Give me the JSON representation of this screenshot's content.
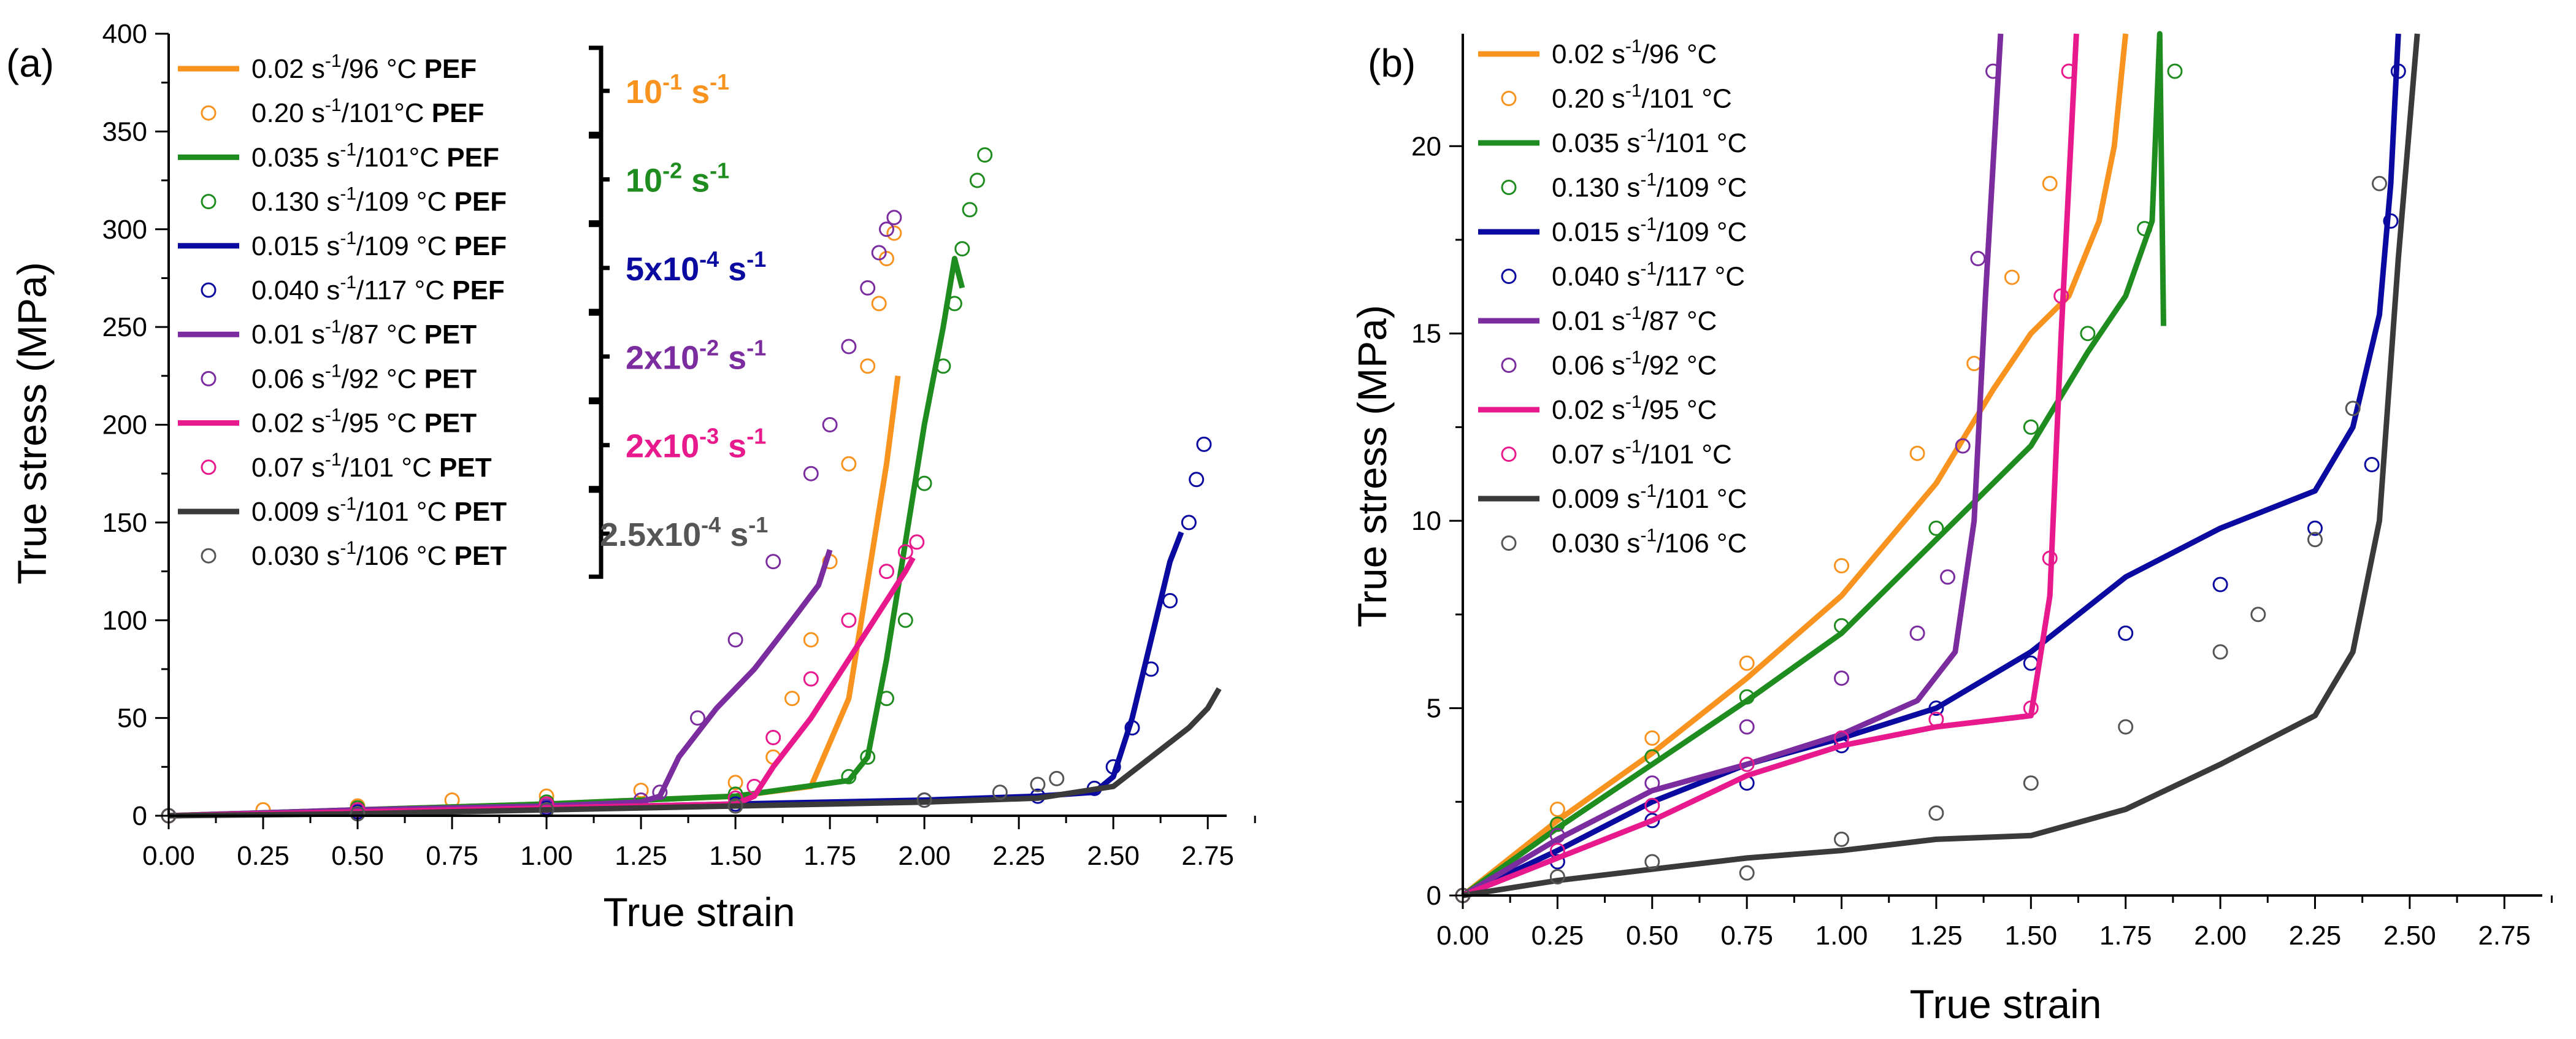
{
  "chart_data": [
    {
      "type": "line",
      "panel": "(a)",
      "xlabel": "True strain",
      "ylabel": "True stress (MPa)",
      "xlim": [
        0,
        2.8
      ],
      "ylim": [
        0,
        400
      ],
      "xticks": [
        "0.00",
        "0.25",
        "0.50",
        "0.75",
        "1.00",
        "1.25",
        "1.50",
        "1.75",
        "2.00",
        "2.25",
        "2.50",
        "2.75"
      ],
      "yticks": [
        "0",
        "50",
        "100",
        "150",
        "200",
        "250",
        "300",
        "350",
        "400"
      ],
      "legend_position": "top-left",
      "rate_groups": [
        {
          "label": "10",
          "sup": "-1",
          "unit": " s",
          "unit_sup": "-1",
          "color": "#F7931E"
        },
        {
          "label": "10",
          "sup": "-2",
          "unit": " s",
          "unit_sup": "-1",
          "color": "#1E8C1E"
        },
        {
          "label": "5x10",
          "sup": "-4",
          "unit": " s",
          "unit_sup": "-1",
          "color": "#0A0AA0"
        },
        {
          "label": "2x10",
          "sup": "-2",
          "unit": " s",
          "unit_sup": "-1",
          "color": "#7B2C9E"
        },
        {
          "label": "2x10",
          "sup": "-3",
          "unit": " s",
          "unit_sup": "-1",
          "color": "#E8198C"
        },
        {
          "label": "2.5x10",
          "sup": "-4",
          "unit": " s",
          "unit_sup": "-1",
          "color": "#555555"
        }
      ],
      "series": [
        {
          "name": "orange-line",
          "legend": {
            "pre": "0.02 s",
            "sup": "-1",
            "post": "/96 °C ",
            "bold": "PEF"
          },
          "style": "line",
          "color": "#F7931E",
          "x": [
            0,
            0.5,
            1.0,
            1.5,
            1.7,
            1.8,
            1.85,
            1.9,
            1.93
          ],
          "y": [
            0,
            3,
            6,
            10,
            15,
            60,
            120,
            180,
            225
          ]
        },
        {
          "name": "orange-circles",
          "legend": {
            "pre": "0.20 s",
            "sup": "-1",
            "post": "/101°C ",
            "bold": "PEF"
          },
          "style": "circle",
          "color": "#F7931E",
          "x": [
            0,
            0.25,
            0.5,
            0.75,
            1.0,
            1.25,
            1.5,
            1.6,
            1.65,
            1.7,
            1.75,
            1.8,
            1.85,
            1.88,
            1.9,
            1.92
          ],
          "y": [
            0,
            3,
            5,
            8,
            10,
            13,
            17,
            30,
            60,
            90,
            130,
            180,
            230,
            262,
            285,
            298
          ]
        },
        {
          "name": "green-line",
          "legend": {
            "pre": "0.035 s",
            "sup": "-1",
            "post": "/101°C ",
            "bold": "PEF"
          },
          "style": "line",
          "color": "#1E8C1E",
          "x": [
            0,
            0.5,
            1.0,
            1.5,
            1.8,
            1.85,
            1.9,
            1.95,
            2.0,
            2.05,
            2.08,
            2.1
          ],
          "y": [
            0,
            3,
            6,
            10,
            18,
            30,
            80,
            140,
            200,
            250,
            285,
            270
          ]
        },
        {
          "name": "green-circles",
          "legend": {
            "pre": "0.130 s",
            "sup": "-1",
            "post": "/109 °C ",
            "bold": "PEF"
          },
          "style": "circle",
          "color": "#1E8C1E",
          "x": [
            0,
            0.5,
            1.0,
            1.5,
            1.8,
            1.85,
            1.9,
            1.95,
            2.0,
            2.05,
            2.08,
            2.1,
            2.12,
            2.14,
            2.16
          ],
          "y": [
            0,
            4,
            7,
            11,
            20,
            30,
            60,
            100,
            170,
            230,
            262,
            290,
            310,
            325,
            338
          ]
        },
        {
          "name": "blue-line",
          "legend": {
            "pre": "0.015 s",
            "sup": "-1",
            "post": "/109 °C ",
            "bold": "PEF"
          },
          "style": "line",
          "color": "#0A0AA0",
          "x": [
            0,
            0.5,
            1.0,
            1.5,
            2.0,
            2.3,
            2.45,
            2.5,
            2.55,
            2.6,
            2.65,
            2.68
          ],
          "y": [
            0,
            2,
            4,
            6,
            8,
            10,
            12,
            20,
            50,
            90,
            130,
            145
          ]
        },
        {
          "name": "blue-circles",
          "legend": {
            "pre": "0.040 s",
            "sup": "-1",
            "post": "/117 °C ",
            "bold": "PEF"
          },
          "style": "circle",
          "color": "#0A0AA0",
          "x": [
            0,
            0.5,
            1.0,
            1.5,
            2.0,
            2.3,
            2.45,
            2.5,
            2.55,
            2.6,
            2.65,
            2.7,
            2.72,
            2.74
          ],
          "y": [
            0,
            2,
            4,
            6,
            8,
            10,
            14,
            25,
            45,
            75,
            110,
            150,
            172,
            190
          ]
        },
        {
          "name": "purple-line",
          "legend": {
            "pre": "0.01 s",
            "sup": "-1",
            "post": "/87 °C ",
            "bold": "PET"
          },
          "style": "line",
          "color": "#7B2C9E",
          "x": [
            0,
            0.5,
            1.0,
            1.25,
            1.3,
            1.35,
            1.45,
            1.55,
            1.65,
            1.72,
            1.75
          ],
          "y": [
            0,
            3,
            5,
            7,
            10,
            30,
            55,
            75,
            100,
            118,
            136
          ]
        },
        {
          "name": "purple-circles",
          "legend": {
            "pre": "0.06 s",
            "sup": "-1",
            "post": "/92 °C ",
            "bold": "PET"
          },
          "style": "circle",
          "color": "#7B2C9E",
          "x": [
            0,
            0.5,
            1.0,
            1.25,
            1.3,
            1.4,
            1.5,
            1.6,
            1.7,
            1.75,
            1.8,
            1.85,
            1.88,
            1.9,
            1.92
          ],
          "y": [
            0,
            3,
            5,
            8,
            12,
            50,
            90,
            130,
            175,
            200,
            240,
            270,
            288,
            300,
            306
          ]
        },
        {
          "name": "pink-line",
          "legend": {
            "pre": "0.02 s",
            "sup": "-1",
            "post": "/95 °C ",
            "bold": "PET"
          },
          "style": "line",
          "color": "#E8198C",
          "x": [
            0,
            0.5,
            1.0,
            1.5,
            1.55,
            1.6,
            1.7,
            1.8,
            1.9,
            1.95,
            1.97
          ],
          "y": [
            0,
            2,
            4,
            6,
            10,
            25,
            50,
            80,
            110,
            125,
            132
          ]
        },
        {
          "name": "pink-circles",
          "legend": {
            "pre": "0.07 s",
            "sup": "-1",
            "post": "/101 °C ",
            "bold": "PET"
          },
          "style": "circle",
          "color": "#E8198C",
          "x": [
            0,
            0.5,
            1.0,
            1.5,
            1.55,
            1.6,
            1.7,
            1.8,
            1.9,
            1.95,
            1.98
          ],
          "y": [
            0,
            3,
            6,
            9,
            15,
            40,
            70,
            100,
            125,
            135,
            140
          ]
        },
        {
          "name": "gray-line",
          "legend": {
            "pre": "0.009 s",
            "sup": "-1",
            "post": "/101 °C ",
            "bold": "PET"
          },
          "style": "line",
          "color": "#3A3A3A",
          "x": [
            0,
            0.5,
            1.0,
            1.5,
            2.0,
            2.3,
            2.5,
            2.6,
            2.7,
            2.75,
            2.78
          ],
          "y": [
            0,
            1,
            3,
            5,
            7,
            9,
            15,
            30,
            45,
            55,
            65
          ]
        },
        {
          "name": "gray-circles",
          "legend": {
            "pre": "0.030 s",
            "sup": "-1",
            "post": "/106 °C ",
            "bold": "PET"
          },
          "style": "circle",
          "color": "#555555",
          "x": [
            0,
            0.5,
            1.0,
            1.5,
            2.0,
            2.2,
            2.3,
            2.35
          ],
          "y": [
            0,
            1,
            3,
            5,
            8,
            12,
            16,
            19
          ]
        }
      ]
    },
    {
      "type": "line",
      "panel": "(b)",
      "xlabel": "True strain",
      "ylabel": "True stress (MPa)",
      "xlim": [
        0,
        2.85
      ],
      "ylim": [
        0,
        23
      ],
      "xticks": [
        "0.00",
        "0.25",
        "0.50",
        "0.75",
        "1.00",
        "1.25",
        "1.50",
        "1.75",
        "2.00",
        "2.25",
        "2.50",
        "2.75"
      ],
      "yticks": [
        "0",
        "5",
        "10",
        "15",
        "20"
      ],
      "legend_position": "top-left",
      "series": [
        {
          "name": "orange-line",
          "legend": {
            "pre": "0.02 s",
            "sup": "-1",
            "post": "/96 °C"
          },
          "style": "line",
          "color": "#F7931E",
          "x": [
            0,
            0.25,
            0.5,
            0.75,
            1.0,
            1.25,
            1.4,
            1.5,
            1.6,
            1.68,
            1.72,
            1.74,
            1.75
          ],
          "y": [
            0,
            2,
            3.8,
            5.8,
            8,
            11,
            13.5,
            15,
            16,
            18,
            20,
            22,
            23
          ]
        },
        {
          "name": "orange-circles",
          "legend": {
            "pre": "0.20 s",
            "sup": "-1",
            "post": "/101 °C"
          },
          "style": "circle",
          "color": "#F7931E",
          "x": [
            0,
            0.25,
            0.5,
            0.75,
            1.0,
            1.2,
            1.35,
            1.45,
            1.55
          ],
          "y": [
            0,
            2.3,
            4.2,
            6.2,
            8.8,
            11.8,
            14.2,
            16.5,
            19
          ]
        },
        {
          "name": "green-line",
          "legend": {
            "pre": "0.035 s",
            "sup": "-1",
            "post": "/101 °C"
          },
          "style": "line",
          "color": "#1E8C1E",
          "x": [
            0,
            0.25,
            0.5,
            0.75,
            1.0,
            1.25,
            1.5,
            1.65,
            1.75,
            1.82,
            1.84,
            1.85
          ],
          "y": [
            0,
            1.8,
            3.5,
            5.2,
            7,
            9.5,
            12,
            14.5,
            16,
            18,
            23,
            15.2
          ]
        },
        {
          "name": "green-circles",
          "legend": {
            "pre": "0.130 s",
            "sup": "-1",
            "post": "/109 °C"
          },
          "style": "circle",
          "color": "#1E8C1E",
          "x": [
            0,
            0.25,
            0.5,
            0.75,
            1.0,
            1.25,
            1.5,
            1.65,
            1.8,
            1.88
          ],
          "y": [
            0,
            1.9,
            3.7,
            5.3,
            7.2,
            9.8,
            12.5,
            15,
            17.8,
            22
          ]
        },
        {
          "name": "blue-line",
          "legend": {
            "pre": "0.015 s",
            "sup": "-1",
            "post": "/109 °C"
          },
          "style": "line",
          "color": "#0A0AA0",
          "x": [
            0,
            0.25,
            0.5,
            0.75,
            1.0,
            1.25,
            1.5,
            1.75,
            2.0,
            2.25,
            2.35,
            2.42,
            2.45,
            2.47
          ],
          "y": [
            0,
            1.2,
            2.5,
            3.5,
            4.2,
            5,
            6.5,
            8.5,
            9.8,
            10.8,
            12.5,
            15.5,
            19,
            23
          ]
        },
        {
          "name": "blue-circles",
          "legend": {
            "pre": "0.040 s",
            "sup": "-1",
            "post": "/117 °C"
          },
          "style": "circle",
          "color": "#0A0AA0",
          "x": [
            0,
            0.25,
            0.5,
            0.75,
            1.0,
            1.25,
            1.5,
            1.75,
            2.0,
            2.25,
            2.4,
            2.45,
            2.47
          ],
          "y": [
            0,
            0.9,
            2,
            3,
            4,
            5,
            6.2,
            7,
            8.3,
            9.8,
            11.5,
            18,
            22
          ]
        },
        {
          "name": "purple-line",
          "legend": {
            "pre": "0.01 s",
            "sup": "-1",
            "post": "/87 °C"
          },
          "style": "line",
          "color": "#7B2C9E",
          "x": [
            0,
            0.25,
            0.5,
            0.75,
            1.0,
            1.2,
            1.3,
            1.35,
            1.38,
            1.42
          ],
          "y": [
            0,
            1.5,
            2.8,
            3.5,
            4.3,
            5.2,
            6.5,
            10,
            16,
            23
          ]
        },
        {
          "name": "purple-circles",
          "legend": {
            "pre": "0.06 s",
            "sup": "-1",
            "post": "/92 °C"
          },
          "style": "circle",
          "color": "#7B2C9E",
          "x": [
            0,
            0.25,
            0.5,
            0.75,
            1.0,
            1.2,
            1.28,
            1.32,
            1.36,
            1.4
          ],
          "y": [
            0,
            1.6,
            3,
            4.5,
            5.8,
            7,
            8.5,
            12,
            17,
            22
          ]
        },
        {
          "name": "pink-line",
          "legend": {
            "pre": "0.02 s",
            "sup": "-1",
            "post": "/95 °C"
          },
          "style": "line",
          "color": "#E8198C",
          "x": [
            0,
            0.25,
            0.5,
            0.75,
            1.0,
            1.25,
            1.5,
            1.55,
            1.58,
            1.62
          ],
          "y": [
            0,
            1,
            2,
            3.2,
            4,
            4.5,
            4.8,
            8,
            15,
            23
          ]
        },
        {
          "name": "pink-circles",
          "legend": {
            "pre": "0.07 s",
            "sup": "-1",
            "post": "/101 °C"
          },
          "style": "circle",
          "color": "#E8198C",
          "x": [
            0,
            0.25,
            0.5,
            0.75,
            1.0,
            1.25,
            1.5,
            1.55,
            1.58,
            1.6
          ],
          "y": [
            0,
            1.2,
            2.4,
            3.5,
            4.2,
            4.7,
            5,
            9,
            16,
            22
          ]
        },
        {
          "name": "gray-line",
          "legend": {
            "pre": "0.009 s",
            "sup": "-1",
            "post": "/101 °C"
          },
          "style": "line",
          "color": "#3A3A3A",
          "x": [
            0,
            0.25,
            0.5,
            0.75,
            1.0,
            1.25,
            1.5,
            1.75,
            2.0,
            2.25,
            2.35,
            2.42,
            2.47,
            2.52
          ],
          "y": [
            0,
            0.4,
            0.7,
            1,
            1.2,
            1.5,
            1.6,
            2.3,
            3.5,
            4.8,
            6.5,
            10,
            17,
            23
          ]
        },
        {
          "name": "gray-circles",
          "legend": {
            "pre": "0.030 s",
            "sup": "-1",
            "post": "/106 °C"
          },
          "style": "circle",
          "color": "#555555",
          "x": [
            0,
            0.25,
            0.5,
            0.75,
            1.0,
            1.25,
            1.5,
            1.75,
            2.0,
            2.1,
            2.25,
            2.35,
            2.42
          ],
          "y": [
            0,
            0.5,
            0.9,
            0.6,
            1.5,
            2.2,
            3,
            4.5,
            6.5,
            7.5,
            9.5,
            13,
            19
          ]
        }
      ]
    }
  ]
}
